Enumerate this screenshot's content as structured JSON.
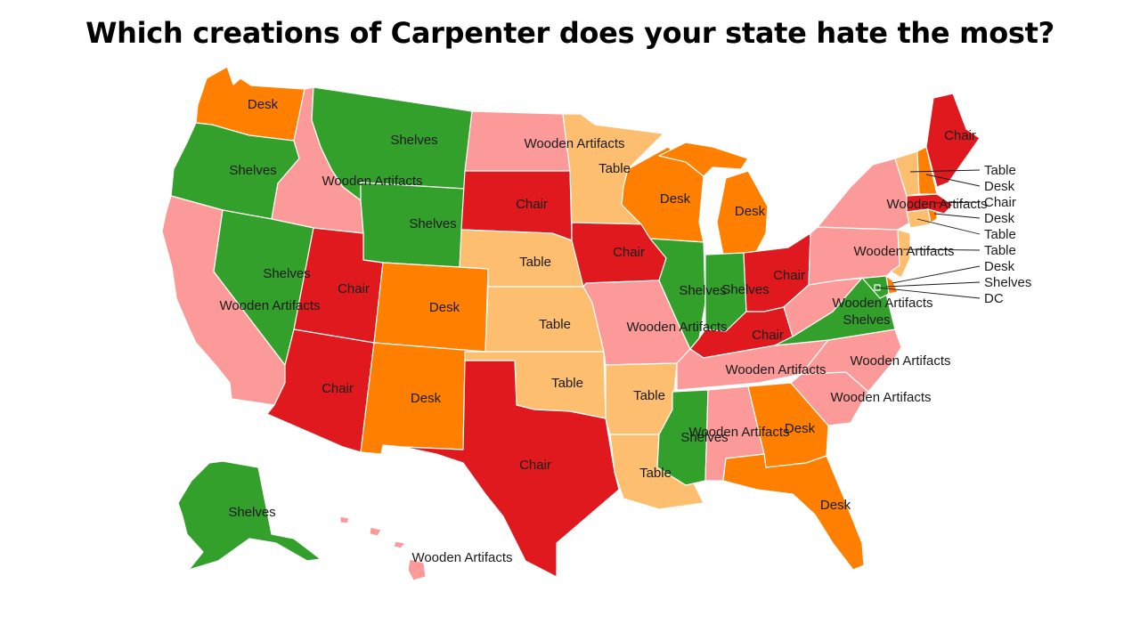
{
  "title": "Which creations of Carpenter does your state hate the most?",
  "legend_colors": {
    "Chair": "#e0191e",
    "Desk": "#ff7f00",
    "Table": "#fdbf6f",
    "Shelves": "#33a02c",
    "Wooden Artifacts": "#fb9a99"
  },
  "states": [
    {
      "id": "WA",
      "label": "Desk"
    },
    {
      "id": "OR",
      "label": "Shelves"
    },
    {
      "id": "CA",
      "label": "Wooden Artifacts"
    },
    {
      "id": "ID",
      "label": "Wooden Artifacts"
    },
    {
      "id": "NV",
      "label": "Shelves"
    },
    {
      "id": "MT",
      "label": "Shelves"
    },
    {
      "id": "WY",
      "label": "Shelves"
    },
    {
      "id": "UT",
      "label": "Chair"
    },
    {
      "id": "AZ",
      "label": "Chair"
    },
    {
      "id": "CO",
      "label": "Desk"
    },
    {
      "id": "NM",
      "label": "Desk"
    },
    {
      "id": "ND",
      "label": "Wooden Artifacts"
    },
    {
      "id": "SD",
      "label": "Chair"
    },
    {
      "id": "NE",
      "label": "Table"
    },
    {
      "id": "KS",
      "label": "Table"
    },
    {
      "id": "OK",
      "label": "Table"
    },
    {
      "id": "TX",
      "label": "Chair"
    },
    {
      "id": "MN",
      "label": "Table"
    },
    {
      "id": "IA",
      "label": "Chair"
    },
    {
      "id": "MO",
      "label": "Wooden Artifacts"
    },
    {
      "id": "AR",
      "label": "Table"
    },
    {
      "id": "LA",
      "label": "Table"
    },
    {
      "id": "WI",
      "label": "Desk"
    },
    {
      "id": "MI",
      "label": "Desk"
    },
    {
      "id": "IL",
      "label": "Shelves"
    },
    {
      "id": "IN",
      "label": "Shelves"
    },
    {
      "id": "OH",
      "label": "Chair"
    },
    {
      "id": "KY",
      "label": "Chair"
    },
    {
      "id": "TN",
      "label": "Wooden Artifacts"
    },
    {
      "id": "MS",
      "label": "Shelves"
    },
    {
      "id": "AL",
      "label": "Wooden Artifacts"
    },
    {
      "id": "GA",
      "label": "Desk"
    },
    {
      "id": "FL",
      "label": "Desk"
    },
    {
      "id": "SC",
      "label": "Wooden Artifacts"
    },
    {
      "id": "NC",
      "label": "Wooden Artifacts"
    },
    {
      "id": "VA",
      "label": "Shelves"
    },
    {
      "id": "WV",
      "label": "Wooden Artifacts"
    },
    {
      "id": "PA",
      "label": "Wooden Artifacts"
    },
    {
      "id": "NY",
      "label": "Wooden Artifacts"
    },
    {
      "id": "ME",
      "label": "Chair"
    },
    {
      "id": "AK",
      "label": "Shelves"
    },
    {
      "id": "HI",
      "label": "Wooden Artifacts"
    },
    {
      "id": "VT",
      "label": "Table"
    },
    {
      "id": "NH",
      "label": "Desk"
    },
    {
      "id": "MA",
      "label": "Chair"
    },
    {
      "id": "RI",
      "label": "Desk"
    },
    {
      "id": "CT",
      "label": "Table"
    },
    {
      "id": "NJ",
      "label": "Table"
    },
    {
      "id": "DE",
      "label": "Desk"
    },
    {
      "id": "MD",
      "label": "Shelves"
    },
    {
      "id": "DC",
      "label": "DC"
    }
  ]
}
